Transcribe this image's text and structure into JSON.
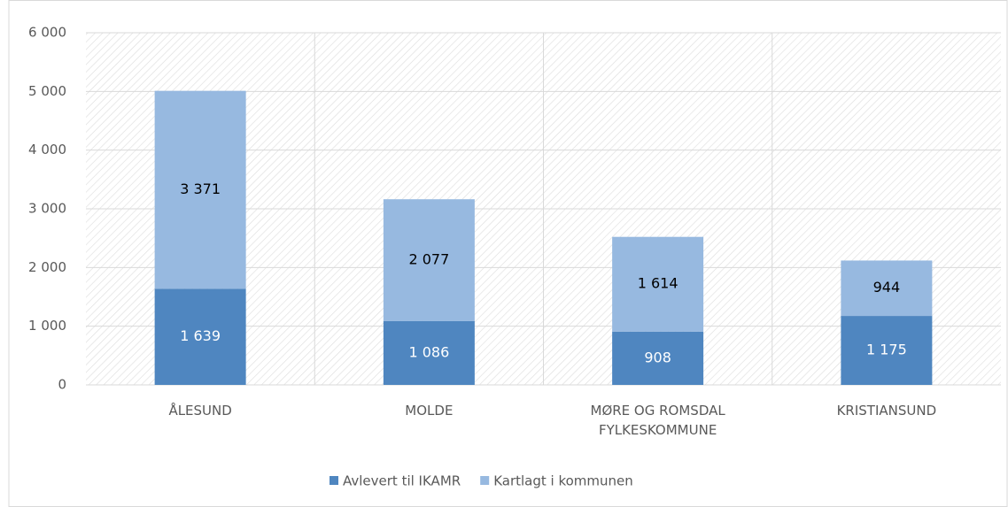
{
  "chart_data": {
    "type": "stacked_bar",
    "categories": [
      "ÅLESUND",
      "MOLDE",
      "MØRE OG ROMSDAL FYLKESKOMMUNE",
      "KRISTIANSUND"
    ],
    "series": [
      {
        "name": "Avlevert til IKAMR",
        "color": "#4f86c0",
        "values": [
          1639,
          1086,
          908,
          1175
        ],
        "value_labels": [
          "1 639",
          "1 086",
          "908",
          "1 175"
        ]
      },
      {
        "name": "Kartlagt i kommunen",
        "color": "#97b9e0",
        "values": [
          3371,
          2077,
          1614,
          944
        ],
        "value_labels": [
          "3 371",
          "2 077",
          "1 614",
          "944"
        ]
      }
    ],
    "ylim": [
      0,
      6000
    ],
    "yticks": [
      0,
      {
        "value": 1000,
        "label": "1 000"
      },
      {
        "value": 2000,
        "label": "2 000"
      },
      {
        "value": 3000,
        "label": "3 000"
      },
      {
        "value": 4000,
        "label": "4 000"
      },
      {
        "value": 5000,
        "label": "5 000"
      },
      {
        "value": 6000,
        "label": "6 000"
      }
    ],
    "grid": true,
    "legend": "bottom"
  }
}
